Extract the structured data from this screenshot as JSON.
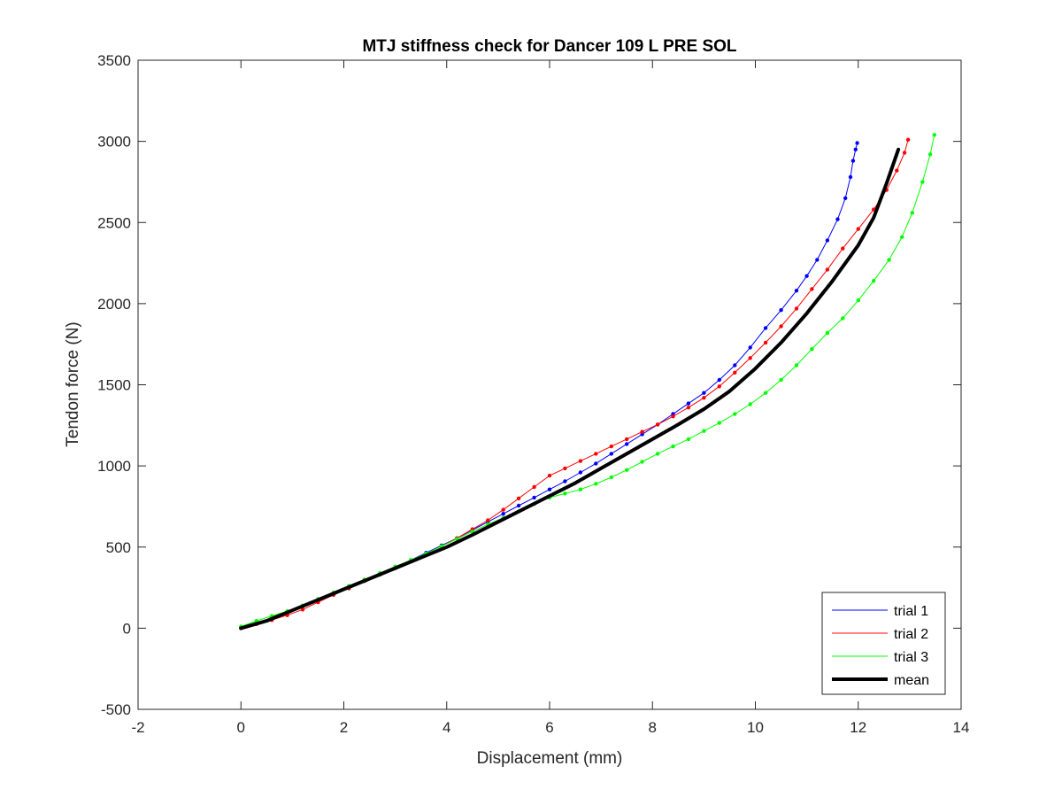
{
  "chart_data": {
    "type": "line",
    "title": "MTJ stiffness check for Dancer 109 L PRE SOL",
    "xlabel": "Displacement (mm)",
    "ylabel": "Tendon force (N)",
    "xlim": [
      -2,
      14
    ],
    "ylim": [
      -500,
      3500
    ],
    "xticks": [
      "-2",
      "0",
      "2",
      "4",
      "6",
      "8",
      "10",
      "12",
      "14"
    ],
    "yticks": [
      "-500",
      "0",
      "500",
      "1000",
      "1500",
      "2000",
      "2500",
      "3000",
      "3500"
    ],
    "grid": false,
    "legend_position": "bottom-right",
    "series": [
      {
        "name": "trial 1",
        "color": "#0000ff",
        "line_width": 1,
        "markers": true,
        "x": [
          0,
          0.3,
          0.6,
          0.9,
          1.2,
          1.5,
          1.8,
          2.1,
          2.4,
          2.7,
          3.0,
          3.3,
          3.6,
          3.9,
          4.2,
          4.5,
          4.8,
          5.1,
          5.4,
          5.7,
          6.0,
          6.3,
          6.6,
          6.9,
          7.2,
          7.5,
          7.8,
          8.1,
          8.4,
          8.7,
          9.0,
          9.3,
          9.6,
          9.9,
          10.2,
          10.5,
          10.8,
          11.0,
          11.2,
          11.4,
          11.6,
          11.75,
          11.85,
          11.9,
          11.95,
          11.98
        ],
        "y": [
          5,
          30,
          60,
          95,
          135,
          175,
          215,
          255,
          295,
          335,
          375,
          420,
          465,
          510,
          555,
          605,
          655,
          705,
          755,
          805,
          855,
          905,
          960,
          1015,
          1075,
          1135,
          1195,
          1255,
          1320,
          1385,
          1450,
          1530,
          1620,
          1730,
          1850,
          1960,
          2080,
          2170,
          2270,
          2390,
          2520,
          2650,
          2780,
          2880,
          2950,
          2990
        ]
      },
      {
        "name": "trial 2",
        "color": "#ff0000",
        "line_width": 1,
        "markers": true,
        "x": [
          0,
          0.3,
          0.6,
          0.9,
          1.2,
          1.5,
          1.8,
          2.1,
          2.4,
          2.7,
          3.0,
          3.3,
          3.6,
          3.9,
          4.2,
          4.5,
          4.8,
          5.1,
          5.4,
          5.7,
          6.0,
          6.3,
          6.6,
          6.9,
          7.2,
          7.5,
          7.8,
          8.1,
          8.4,
          8.7,
          9.0,
          9.3,
          9.6,
          9.9,
          10.2,
          10.5,
          10.8,
          11.1,
          11.4,
          11.7,
          12.0,
          12.3,
          12.55,
          12.75,
          12.9,
          12.97
        ],
        "y": [
          0,
          25,
          50,
          80,
          115,
          160,
          205,
          245,
          290,
          330,
          370,
          415,
          460,
          505,
          555,
          610,
          665,
          730,
          800,
          870,
          940,
          985,
          1030,
          1075,
          1120,
          1165,
          1210,
          1255,
          1305,
          1360,
          1420,
          1490,
          1575,
          1665,
          1760,
          1860,
          1970,
          2090,
          2210,
          2340,
          2460,
          2580,
          2700,
          2820,
          2930,
          3010
        ]
      },
      {
        "name": "trial 3",
        "color": "#00ff00",
        "line_width": 1,
        "markers": true,
        "x": [
          0,
          0.3,
          0.6,
          0.9,
          1.2,
          1.5,
          1.8,
          2.1,
          2.4,
          2.7,
          3.0,
          3.3,
          3.6,
          3.9,
          4.2,
          4.5,
          4.8,
          5.1,
          5.4,
          5.7,
          6.0,
          6.3,
          6.6,
          6.9,
          7.2,
          7.5,
          7.8,
          8.1,
          8.4,
          8.7,
          9.0,
          9.3,
          9.6,
          9.9,
          10.2,
          10.5,
          10.8,
          11.1,
          11.4,
          11.7,
          12.0,
          12.3,
          12.6,
          12.85,
          13.05,
          13.25,
          13.4,
          13.48
        ],
        "y": [
          10,
          45,
          75,
          105,
          140,
          180,
          220,
          260,
          300,
          340,
          380,
          420,
          460,
          505,
          550,
          595,
          640,
          680,
          720,
          765,
          805,
          830,
          855,
          890,
          930,
          975,
          1025,
          1075,
          1120,
          1165,
          1215,
          1265,
          1320,
          1380,
          1450,
          1530,
          1620,
          1720,
          1820,
          1910,
          2020,
          2140,
          2270,
          2410,
          2560,
          2750,
          2920,
          3040
        ]
      },
      {
        "name": "mean",
        "color": "#000000",
        "line_width": 4,
        "markers": false,
        "x": [
          0,
          0.5,
          1.0,
          1.5,
          2.0,
          2.5,
          3.0,
          3.5,
          4.0,
          4.5,
          5.0,
          5.5,
          6.0,
          6.5,
          7.0,
          7.5,
          8.0,
          8.5,
          9.0,
          9.5,
          10.0,
          10.5,
          11.0,
          11.5,
          12.0,
          12.3,
          12.55,
          12.78
        ],
        "y": [
          0,
          45,
          110,
          175,
          240,
          305,
          370,
          435,
          500,
          575,
          655,
          735,
          815,
          895,
          985,
          1075,
          1165,
          1255,
          1350,
          1460,
          1600,
          1760,
          1940,
          2140,
          2360,
          2530,
          2740,
          2950
        ]
      }
    ]
  }
}
